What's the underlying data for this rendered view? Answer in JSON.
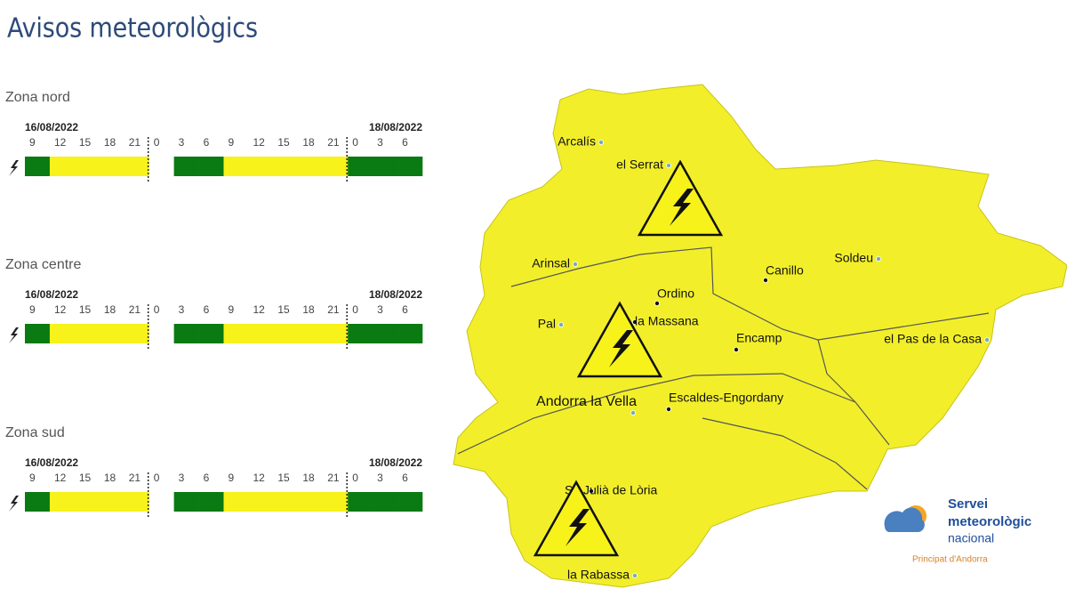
{
  "header": {
    "title": "Avisos meteorològics"
  },
  "zones": [
    {
      "name": "Zona nord",
      "start_date": "16/08/2022",
      "end_date": "18/08/2022",
      "hours": [
        9,
        12,
        15,
        18,
        21,
        0,
        3,
        6,
        9,
        12,
        15,
        18,
        21,
        0,
        3,
        6
      ],
      "levels": [
        "green",
        "yellow",
        "yellow",
        "yellow",
        "yellow",
        null,
        "green",
        "green",
        "yellow",
        "yellow",
        "yellow",
        "yellow",
        "yellow",
        "green",
        "green",
        "green"
      ]
    },
    {
      "name": "Zona centre",
      "start_date": "16/08/2022",
      "end_date": "18/08/2022",
      "hours": [
        9,
        12,
        15,
        18,
        21,
        0,
        3,
        6,
        9,
        12,
        15,
        18,
        21,
        0,
        3,
        6
      ],
      "levels": [
        "green",
        "yellow",
        "yellow",
        "yellow",
        "yellow",
        null,
        "green",
        "green",
        "yellow",
        "yellow",
        "yellow",
        "yellow",
        "yellow",
        "green",
        "green",
        "green"
      ]
    },
    {
      "name": "Zona sud",
      "start_date": "16/08/2022",
      "end_date": "18/08/2022",
      "hours": [
        9,
        12,
        15,
        18,
        21,
        0,
        3,
        6,
        9,
        12,
        15,
        18,
        21,
        0,
        3,
        6
      ],
      "levels": [
        "green",
        "yellow",
        "yellow",
        "yellow",
        "yellow",
        null,
        "green",
        "green",
        "yellow",
        "yellow",
        "yellow",
        "yellow",
        "yellow",
        "green",
        "green",
        "green"
      ]
    }
  ],
  "map": {
    "places": [
      "Arcalís",
      "el Serrat",
      "Arinsal",
      "Ordino",
      "Canillo",
      "Soldeu",
      "Pal",
      "la Massana",
      "Encamp",
      "el Pas de la Casa",
      "Andorra la Vella",
      "Escaldes-Engordany",
      "St. Julià de Lòria",
      "la Rabassa"
    ]
  },
  "logo": {
    "line1": "Servei",
    "line2": "meteorològic",
    "line3": "nacional",
    "subtitle": "Principat d'Andorra"
  }
}
